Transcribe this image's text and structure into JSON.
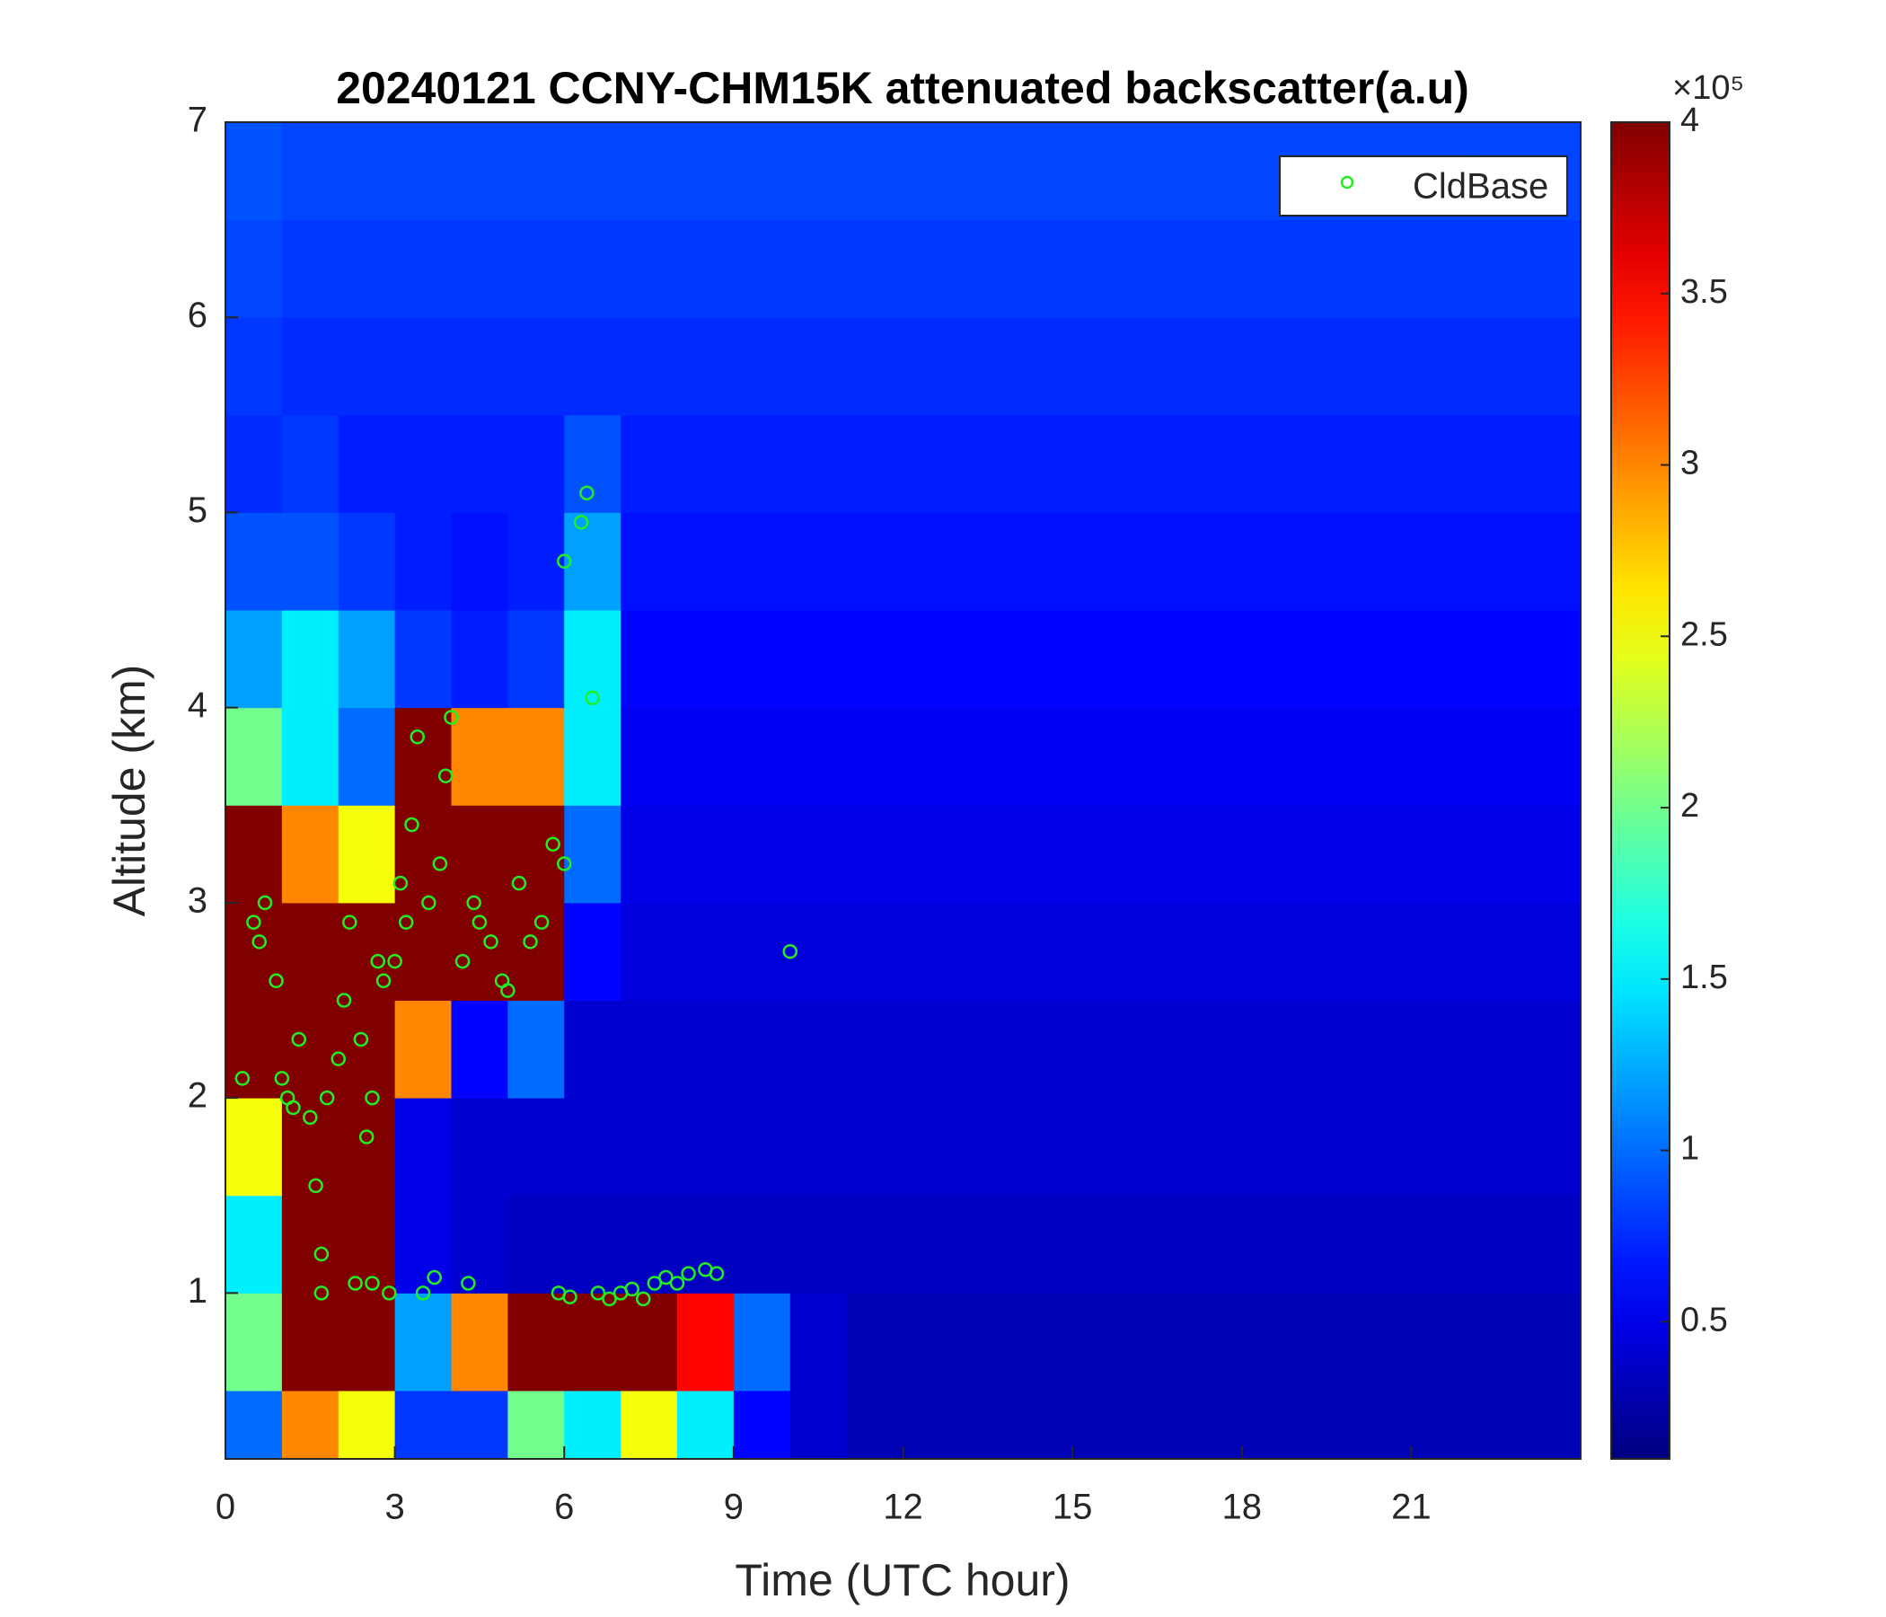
{
  "chart_data": {
    "type": "heatmap",
    "title": "20240121 CCNY-CHM15K attenuated backscatter(a.u)",
    "x_label": "Time (UTC hour)",
    "y_label": "Altitude (km)",
    "xlim": [
      0,
      24
    ],
    "xticks": [
      0,
      3,
      6,
      9,
      12,
      15,
      18,
      21
    ],
    "ylim": [
      0.15,
      7
    ],
    "yticks": [
      1,
      2,
      3,
      4,
      5,
      6,
      7
    ],
    "grid": false,
    "colormap": "jet",
    "clim": [
      0.1,
      4
    ],
    "cticks": [
      0.5,
      1,
      1.5,
      2,
      2.5,
      3,
      3.5,
      4
    ],
    "colorbar_multiplier": "×10⁵",
    "time_edges": [
      0,
      1,
      2,
      3,
      4,
      5,
      6,
      7,
      8,
      9,
      10,
      11,
      12,
      13,
      14,
      15,
      16,
      17,
      18,
      19,
      20,
      21,
      22,
      23,
      24
    ],
    "altitude_edges": [
      0.15,
      0.5,
      1,
      1.5,
      2,
      2.5,
      3,
      3.5,
      4,
      4.5,
      5,
      5.5,
      6,
      6.5,
      7
    ],
    "z": [
      [
        1.0,
        3.0,
        2.5,
        0.8,
        0.8,
        2.0,
        1.5,
        2.5,
        1.5,
        0.6,
        0.4,
        0.3,
        0.3,
        0.3,
        0.3,
        0.3,
        0.3,
        0.3,
        0.3,
        0.3,
        0.3,
        0.3,
        0.3,
        0.3
      ],
      [
        2.0,
        4,
        4,
        1.2,
        3.0,
        4,
        4,
        4,
        3.5,
        1.0,
        0.4,
        0.3,
        0.3,
        0.3,
        0.3,
        0.3,
        0.3,
        0.3,
        0.3,
        0.3,
        0.3,
        0.3,
        0.3,
        0.3
      ],
      [
        1.5,
        4,
        4,
        0.5,
        0.4,
        0.35,
        0.35,
        0.35,
        0.35,
        0.35,
        0.35,
        0.35,
        0.35,
        0.35,
        0.35,
        0.35,
        0.35,
        0.35,
        0.35,
        0.35,
        0.35,
        0.35,
        0.35,
        0.35
      ],
      [
        2.5,
        4,
        4,
        0.5,
        0.4,
        0.4,
        0.4,
        0.4,
        0.4,
        0.4,
        0.4,
        0.4,
        0.4,
        0.4,
        0.4,
        0.4,
        0.4,
        0.4,
        0.4,
        0.4,
        0.4,
        0.4,
        0.4,
        0.4
      ],
      [
        4,
        4,
        4,
        3.0,
        0.6,
        1.0,
        0.4,
        0.4,
        0.4,
        0.4,
        0.4,
        0.4,
        0.4,
        0.4,
        0.4,
        0.4,
        0.4,
        0.4,
        0.4,
        0.4,
        0.4,
        0.4,
        0.4,
        0.4
      ],
      [
        4,
        4,
        4,
        4,
        4,
        4,
        0.6,
        0.45,
        0.45,
        0.45,
        0.45,
        0.45,
        0.45,
        0.45,
        0.45,
        0.45,
        0.45,
        0.45,
        0.45,
        0.45,
        0.45,
        0.45,
        0.45,
        0.45
      ],
      [
        4,
        3.0,
        2.5,
        4,
        4,
        4,
        1.0,
        0.5,
        0.5,
        0.5,
        0.5,
        0.5,
        0.5,
        0.5,
        0.5,
        0.5,
        0.5,
        0.5,
        0.5,
        0.5,
        0.5,
        0.5,
        0.5,
        0.5
      ],
      [
        2.0,
        1.5,
        1.0,
        4,
        3.0,
        3.0,
        1.5,
        0.55,
        0.55,
        0.55,
        0.55,
        0.55,
        0.55,
        0.55,
        0.55,
        0.55,
        0.55,
        0.55,
        0.55,
        0.55,
        0.55,
        0.55,
        0.55,
        0.55
      ],
      [
        1.2,
        1.5,
        1.2,
        0.8,
        0.7,
        0.8,
        1.5,
        0.6,
        0.6,
        0.6,
        0.6,
        0.6,
        0.6,
        0.6,
        0.6,
        0.6,
        0.6,
        0.6,
        0.6,
        0.6,
        0.6,
        0.6,
        0.6,
        0.6
      ],
      [
        0.9,
        0.9,
        0.8,
        0.7,
        0.65,
        0.7,
        1.2,
        0.65,
        0.65,
        0.65,
        0.65,
        0.65,
        0.65,
        0.65,
        0.65,
        0.65,
        0.65,
        0.65,
        0.65,
        0.65,
        0.65,
        0.65,
        0.65,
        0.65
      ],
      [
        0.75,
        0.8,
        0.7,
        0.7,
        0.7,
        0.7,
        0.9,
        0.7,
        0.7,
        0.7,
        0.7,
        0.7,
        0.7,
        0.7,
        0.7,
        0.7,
        0.7,
        0.7,
        0.7,
        0.7,
        0.7,
        0.7,
        0.7,
        0.7
      ],
      [
        0.8,
        0.75,
        0.75,
        0.75,
        0.75,
        0.75,
        0.75,
        0.75,
        0.75,
        0.75,
        0.75,
        0.75,
        0.75,
        0.75,
        0.75,
        0.75,
        0.75,
        0.75,
        0.75,
        0.75,
        0.75,
        0.75,
        0.75,
        0.75
      ],
      [
        0.85,
        0.8,
        0.8,
        0.8,
        0.8,
        0.8,
        0.8,
        0.8,
        0.8,
        0.8,
        0.8,
        0.8,
        0.8,
        0.8,
        0.8,
        0.8,
        0.8,
        0.8,
        0.8,
        0.8,
        0.8,
        0.8,
        0.8,
        0.8
      ],
      [
        0.9,
        0.85,
        0.85,
        0.85,
        0.85,
        0.85,
        0.85,
        0.85,
        0.85,
        0.85,
        0.85,
        0.85,
        0.85,
        0.85,
        0.85,
        0.85,
        0.85,
        0.85,
        0.85,
        0.85,
        0.85,
        0.85,
        0.85,
        0.85
      ]
    ],
    "legend_position": "upper right",
    "series": [
      {
        "name": "CldBase",
        "type": "scatter",
        "color": "#22ee22",
        "x": [
          0.3,
          0.5,
          0.6,
          0.7,
          0.9,
          1.0,
          1.1,
          1.2,
          1.3,
          1.5,
          1.6,
          1.7,
          1.7,
          1.8,
          2.0,
          2.1,
          2.2,
          2.3,
          2.4,
          2.5,
          2.6,
          2.6,
          2.7,
          2.8,
          2.9,
          3.0,
          3.1,
          3.2,
          3.3,
          3.4,
          3.5,
          3.6,
          3.7,
          3.8,
          3.9,
          4.0,
          4.2,
          4.3,
          4.4,
          4.5,
          4.7,
          4.9,
          5.0,
          5.2,
          5.4,
          5.6,
          5.8,
          5.9,
          6.0,
          6.0,
          6.1,
          6.3,
          6.4,
          6.5,
          6.6,
          6.8,
          7.0,
          7.2,
          7.4,
          7.6,
          7.8,
          8.0,
          8.2,
          8.5,
          8.7,
          10.0
        ],
        "y": [
          2.1,
          2.9,
          2.8,
          3.0,
          2.6,
          2.1,
          2.0,
          1.95,
          2.3,
          1.9,
          1.55,
          1.2,
          1.0,
          2.0,
          2.2,
          2.5,
          2.9,
          1.05,
          2.3,
          1.8,
          2.0,
          1.05,
          2.7,
          2.6,
          1.0,
          2.7,
          3.1,
          2.9,
          3.4,
          3.85,
          1.0,
          3.0,
          1.08,
          3.2,
          3.65,
          3.95,
          2.7,
          1.05,
          3.0,
          2.9,
          2.8,
          2.6,
          2.55,
          3.1,
          2.8,
          2.9,
          3.3,
          1.0,
          3.2,
          4.75,
          0.98,
          4.95,
          5.1,
          4.05,
          1.0,
          0.97,
          1.0,
          1.02,
          0.97,
          1.05,
          1.08,
          1.05,
          1.1,
          1.12,
          1.1,
          2.75
        ]
      }
    ]
  }
}
